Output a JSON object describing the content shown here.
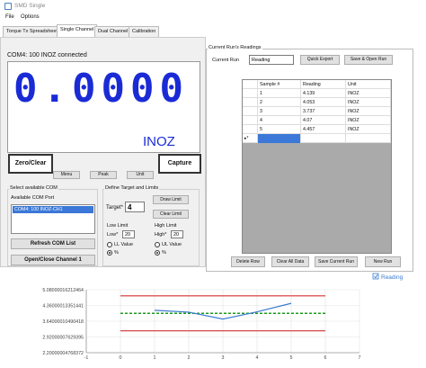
{
  "window": {
    "title": "SMD Single"
  },
  "menu": [
    "File",
    "Options"
  ],
  "tabs": [
    "Torque Tx Spreadsheet",
    "Single Channel",
    "Dual Channel",
    "Calibration"
  ],
  "status": "COM4: 100 INOZ connected",
  "reading": {
    "value": "0.0000",
    "unit": "INOZ"
  },
  "buttons": {
    "zero_clear": "Zero/Clear",
    "capture": "Capture",
    "menu": "Menu",
    "peak": "Peak",
    "unit": "Unit"
  },
  "com": {
    "group": "Select available COM",
    "available_label": "Available COM Port",
    "selected": "COM4: 100 INOZ-CH1",
    "refresh": "Refresh COM List",
    "open_close": "Open/Close Channel 1"
  },
  "target": {
    "group": "Define Target and Limits",
    "target_label": "Target*",
    "target_value": "4",
    "draw_limit": "Draw Limit",
    "clear_limit": "Clear Limit",
    "low_limit_label": "Low Limit",
    "low_label": "Low*",
    "low_value": "20",
    "ll_value": "LL Value",
    "ll_percent": "%",
    "high_limit_label": "High Limit",
    "high_label": "High*",
    "high_value": "20",
    "ul_value": "UL Value",
    "ul_percent": "%"
  },
  "run": {
    "group": "Current Run's Readings",
    "label": "Current Run",
    "value": "Reading",
    "quick_export": "Quick Export",
    "save_open": "Save & Open Run"
  },
  "table": {
    "headers": [
      "Sample #",
      "Reading",
      "Unit"
    ],
    "rows": [
      {
        "sample": "1",
        "reading": "4.139",
        "unit": "INOZ"
      },
      {
        "sample": "2",
        "reading": "4.053",
        "unit": "INOZ"
      },
      {
        "sample": "3",
        "reading": "3.737",
        "unit": "INOZ"
      },
      {
        "sample": "4",
        "reading": "4.07",
        "unit": "INOZ"
      },
      {
        "sample": "5",
        "reading": "4.457",
        "unit": "INOZ"
      }
    ],
    "new_row_marker": "▸*"
  },
  "bottom_buttons": {
    "delete_row": "Delete Row",
    "clear_all": "Clear All Data",
    "save_run": "Save Current Run",
    "new_run": "New Run"
  },
  "chart_data": {
    "type": "line",
    "legend": "Reading",
    "x_ticks": [
      "-1",
      "0",
      "1",
      "2",
      "3",
      "4",
      "5",
      "6",
      "7"
    ],
    "y_ticks": [
      "5.08000016212464",
      "4.36000013351441",
      "3.64000010490418",
      "2.92000007629395",
      "2.20000004768372"
    ],
    "xlim": [
      -1,
      7
    ],
    "ylim": [
      2.2,
      5.08
    ],
    "series": [
      {
        "name": "Reading",
        "x": [
          1,
          2,
          3,
          4,
          5
        ],
        "y": [
          4.139,
          4.053,
          3.737,
          4.07,
          4.457
        ],
        "color": "#3a7ad0"
      }
    ],
    "limits": {
      "upper": 4.8,
      "lower": 3.2,
      "target": 4.0,
      "upper_color": "#d43030",
      "lower_color": "#d43030",
      "target_color": "#1d9a1d"
    },
    "grid": true
  }
}
